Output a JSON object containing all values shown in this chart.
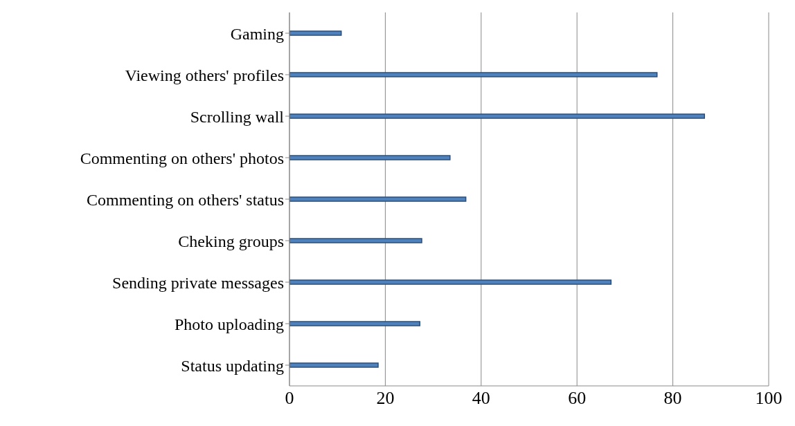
{
  "chart_data": {
    "type": "bar",
    "orientation": "horizontal",
    "categories": [
      "Gaming",
      "Viewing others' profiles",
      "Scrolling wall",
      "Commenting on others' photos",
      "Commenting on others' status",
      "Cheking groups",
      "Sending private messages",
      "Photo uploading",
      "Status updating"
    ],
    "values": [
      10.8,
      76.7,
      86.6,
      33.5,
      36.8,
      27.6,
      67.1,
      27.2,
      18.5
    ],
    "color": "#4f81bd",
    "xlim": [
      0,
      100
    ],
    "xticks": [
      0,
      20,
      40,
      60,
      80,
      100
    ],
    "grid": "x"
  }
}
